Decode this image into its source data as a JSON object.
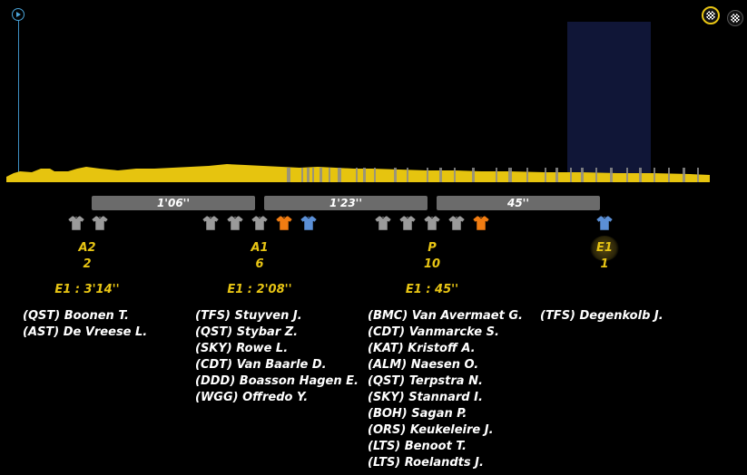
{
  "gaps": [
    "1'06''",
    "1'23''",
    "45''"
  ],
  "groups": [
    {
      "name": "A2",
      "count": "2",
      "gap": "E1 : 3'14''",
      "riders": [
        "(QST) Boonen T.",
        "(AST) De Vreese L."
      ],
      "jerseys": [
        "grey",
        "grey"
      ]
    },
    {
      "name": "A1",
      "count": "6",
      "gap": "E1 : 2'08''",
      "riders": [
        "(TFS) Stuyven J.",
        "(QST) Stybar Z.",
        "(SKY) Rowe L.",
        "(CDT) Van Baarle D.",
        "(DDD) Boasson Hagen E.",
        "(WGG) Offredo Y."
      ],
      "jerseys": [
        "grey",
        "grey",
        "grey",
        "orange",
        "blue"
      ]
    },
    {
      "name": "P",
      "count": "10",
      "gap": "E1 : 45''",
      "riders": [
        "(BMC) Van Avermaet G.",
        "(CDT) Vanmarcke S.",
        "(KAT) Kristoff A.",
        "(ALM) Naesen O.",
        "(QST) Terpstra N.",
        "(SKY) Stannard I.",
        "(BOH) Sagan P.",
        "(ORS) Keukeleire J.",
        "(LTS) Benoot T.",
        "(LTS) Roelandts J."
      ],
      "jerseys": [
        "grey",
        "grey",
        "grey",
        "grey",
        "orange"
      ]
    },
    {
      "name": "E1",
      "count": "1",
      "gap": "",
      "riders": [
        "(TFS) Degenkolb J."
      ],
      "jerseys": [
        "blue"
      ]
    }
  ],
  "colors": {
    "accent": "#e8c514",
    "profile_yellow": "#e6c40f",
    "cobble_grey": "#8c8c8c",
    "grey_jersey": "#9a9a9a",
    "orange_jersey": "#f07c12",
    "blue_jersey": "#5b8fd6"
  },
  "icons": {
    "play": "play-icon",
    "flag": "checkered-flag-icon",
    "jersey": "jersey-icon"
  }
}
